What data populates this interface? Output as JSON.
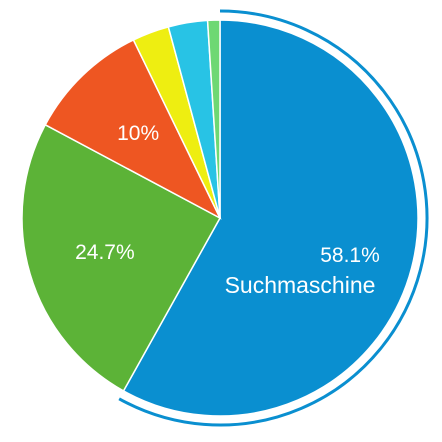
{
  "chart_data": {
    "type": "pie",
    "slices": [
      {
        "value": 58.1,
        "color": "#0a8fd0",
        "label": "58.1%",
        "name": "Suchmaschine",
        "highlighted": true
      },
      {
        "value": 24.7,
        "color": "#5cb337",
        "label": "24.7%"
      },
      {
        "value": 10.0,
        "color": "#ee5622",
        "label": "10%"
      },
      {
        "value": 3.0,
        "color": "#eeee11"
      },
      {
        "value": 3.2,
        "color": "#28c3e5"
      },
      {
        "value": 1.0,
        "color": "#6ed873"
      }
    ],
    "start_angle_deg": 0,
    "direction": "clockwise",
    "highlight_ring_color": "#0a8fd0"
  }
}
